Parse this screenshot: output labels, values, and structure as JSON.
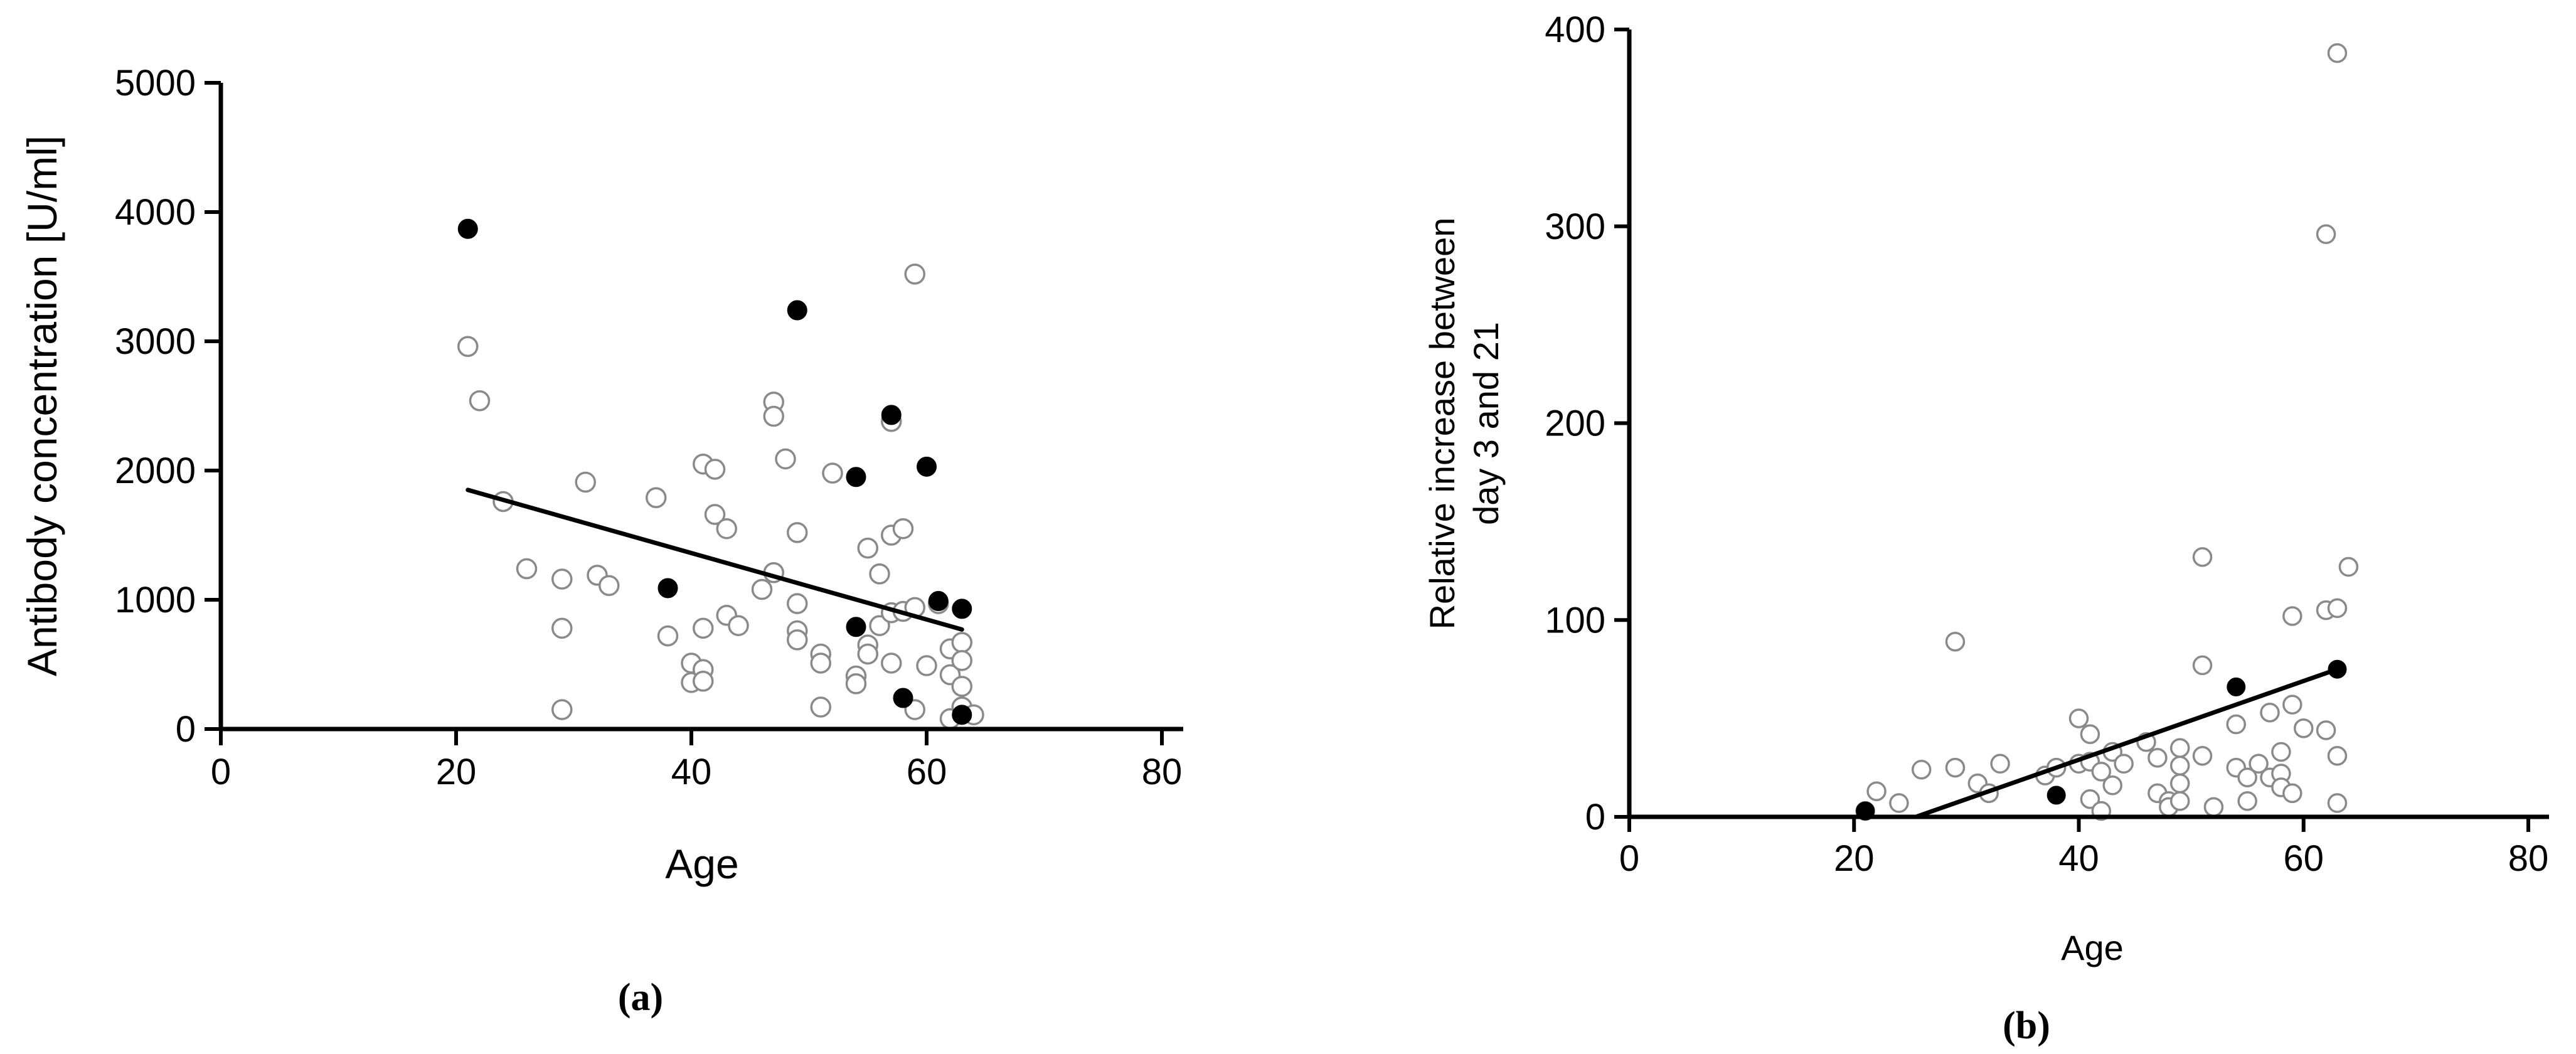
{
  "chart_data": [
    {
      "type": "scatter",
      "panel_label": "(a)",
      "xlabel": "Age",
      "ylabel": "Antibody concentration [U/ml]",
      "xlim": [
        0,
        80
      ],
      "ylim": [
        0,
        5000
      ],
      "xticks": [
        "0",
        "20",
        "40",
        "60",
        "80"
      ],
      "yticks": [
        "0",
        "1000",
        "2000",
        "3000",
        "4000",
        "5000"
      ],
      "grid": false,
      "trendline": {
        "x": [
          21,
          63
        ],
        "y": [
          1850,
          770
        ]
      },
      "series": [
        {
          "marker": "open-circle",
          "points": [
            [
              21,
              2960
            ],
            [
              22,
              2540
            ],
            [
              24,
              1760
            ],
            [
              26,
              1240
            ],
            [
              29,
              1160
            ],
            [
              29,
              780
            ],
            [
              29,
              150
            ],
            [
              31,
              1910
            ],
            [
              32,
              1190
            ],
            [
              33,
              1110
            ],
            [
              37,
              1790
            ],
            [
              38,
              720
            ],
            [
              40,
              510
            ],
            [
              40,
              360
            ],
            [
              41,
              460
            ],
            [
              41,
              370
            ],
            [
              41,
              780
            ],
            [
              41,
              2050
            ],
            [
              42,
              2010
            ],
            [
              42,
              1660
            ],
            [
              43,
              1550
            ],
            [
              43,
              880
            ],
            [
              44,
              800
            ],
            [
              46,
              1080
            ],
            [
              47,
              1210
            ],
            [
              47,
              2530
            ],
            [
              47,
              2420
            ],
            [
              48,
              2090
            ],
            [
              49,
              1520
            ],
            [
              49,
              970
            ],
            [
              49,
              760
            ],
            [
              49,
              690
            ],
            [
              51,
              580
            ],
            [
              51,
              510
            ],
            [
              51,
              170
            ],
            [
              52,
              1980
            ],
            [
              54,
              410
            ],
            [
              54,
              350
            ],
            [
              55,
              1400
            ],
            [
              55,
              650
            ],
            [
              55,
              580
            ],
            [
              56,
              1200
            ],
            [
              56,
              800
            ],
            [
              57,
              1500
            ],
            [
              57,
              900
            ],
            [
              57,
              510
            ],
            [
              57,
              2380
            ],
            [
              58,
              1550
            ],
            [
              58,
              910
            ],
            [
              59,
              3520
            ],
            [
              59,
              940
            ],
            [
              59,
              150
            ],
            [
              60,
              490
            ],
            [
              61,
              970
            ],
            [
              62,
              620
            ],
            [
              62,
              420
            ],
            [
              62,
              80
            ],
            [
              63,
              670
            ],
            [
              63,
              530
            ],
            [
              63,
              330
            ],
            [
              63,
              170
            ],
            [
              64,
              110
            ]
          ]
        },
        {
          "marker": "filled-circle",
          "points": [
            [
              21,
              3870
            ],
            [
              38,
              1090
            ],
            [
              49,
              3240
            ],
            [
              54,
              1950
            ],
            [
              54,
              790
            ],
            [
              57,
              2430
            ],
            [
              58,
              240
            ],
            [
              60,
              2030
            ],
            [
              61,
              990
            ],
            [
              63,
              930
            ],
            [
              63,
              110
            ]
          ]
        }
      ]
    },
    {
      "type": "scatter",
      "panel_label": "(b)",
      "xlabel": "Age",
      "ylabel_lines": [
        "Relative increase between",
        "day 3 and 21"
      ],
      "xlim": [
        0,
        80
      ],
      "ylim": [
        0,
        400
      ],
      "xticks": [
        "0",
        "20",
        "40",
        "60",
        "80"
      ],
      "yticks": [
        "0",
        "100",
        "200",
        "300",
        "400"
      ],
      "grid": false,
      "trendline": {
        "x": [
          25.5,
          63
        ],
        "y": [
          0,
          75
        ]
      },
      "series": [
        {
          "marker": "open-circle",
          "points": [
            [
              21,
              3
            ],
            [
              22,
              13
            ],
            [
              24,
              7
            ],
            [
              26,
              24
            ],
            [
              29,
              89
            ],
            [
              29,
              25
            ],
            [
              31,
              17
            ],
            [
              32,
              12
            ],
            [
              33,
              27
            ],
            [
              37,
              21
            ],
            [
              38,
              25
            ],
            [
              40,
              50
            ],
            [
              40,
              27
            ],
            [
              41,
              42
            ],
            [
              41,
              28
            ],
            [
              41,
              9
            ],
            [
              42,
              23
            ],
            [
              42,
              3
            ],
            [
              43,
              33
            ],
            [
              43,
              16
            ],
            [
              44,
              27
            ],
            [
              46,
              38
            ],
            [
              47,
              30
            ],
            [
              47,
              12
            ],
            [
              48,
              8
            ],
            [
              48,
              5
            ],
            [
              49,
              35
            ],
            [
              49,
              26
            ],
            [
              49,
              17
            ],
            [
              49,
              8
            ],
            [
              51,
              132
            ],
            [
              51,
              77
            ],
            [
              51,
              31
            ],
            [
              52,
              5
            ],
            [
              54,
              47
            ],
            [
              54,
              25
            ],
            [
              55,
              20
            ],
            [
              55,
              8
            ],
            [
              56,
              27
            ],
            [
              57,
              53
            ],
            [
              57,
              20
            ],
            [
              58,
              33
            ],
            [
              58,
              22
            ],
            [
              58,
              15
            ],
            [
              59,
              102
            ],
            [
              59,
              57
            ],
            [
              59,
              12
            ],
            [
              60,
              45
            ],
            [
              62,
              296
            ],
            [
              62,
              105
            ],
            [
              62,
              44
            ],
            [
              63,
              388
            ],
            [
              63,
              106
            ],
            [
              63,
              31
            ],
            [
              63,
              7
            ],
            [
              64,
              127
            ]
          ]
        },
        {
          "marker": "filled-circle",
          "points": [
            [
              21,
              3
            ],
            [
              38,
              11
            ],
            [
              54,
              66
            ],
            [
              63,
              75
            ]
          ]
        }
      ]
    }
  ]
}
